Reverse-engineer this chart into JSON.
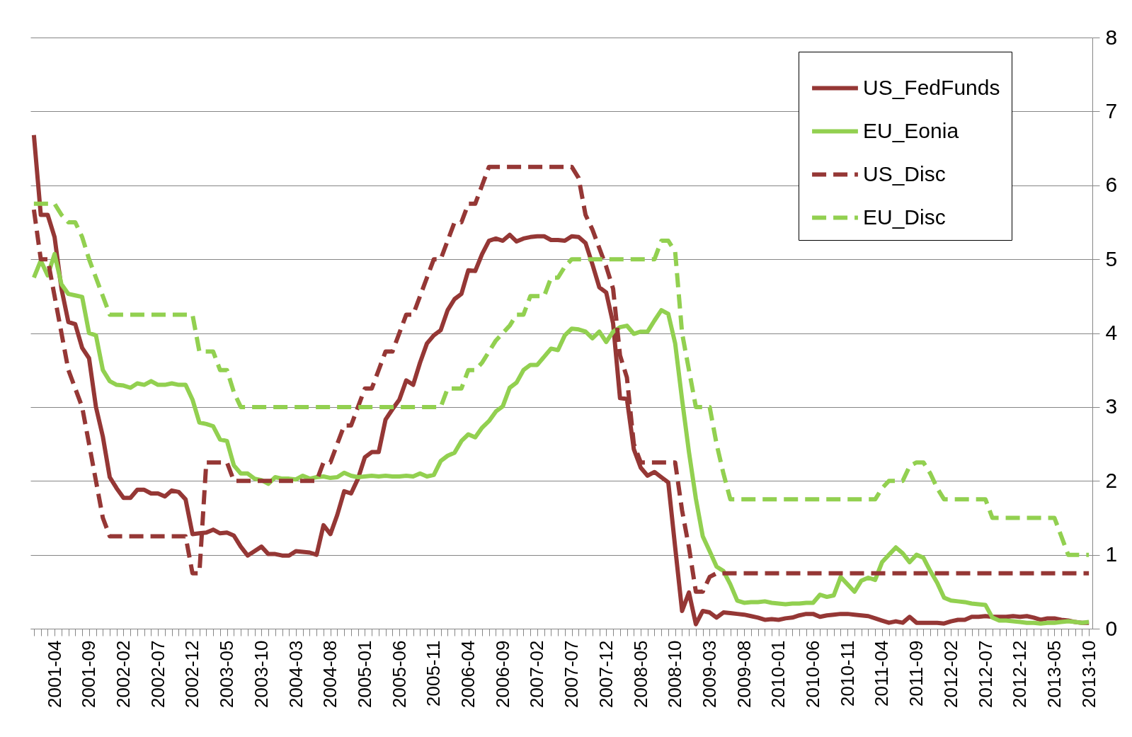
{
  "chart_data": {
    "type": "line",
    "categories": [
      null,
      null,
      null,
      "2001-04",
      null,
      null,
      null,
      null,
      "2001-09",
      null,
      null,
      null,
      null,
      "2002-02",
      null,
      null,
      null,
      null,
      "2002-07",
      null,
      null,
      null,
      null,
      "2002-12",
      null,
      null,
      null,
      null,
      "2003-05",
      null,
      null,
      null,
      null,
      "2003-10",
      null,
      null,
      null,
      null,
      "2004-03",
      null,
      null,
      null,
      null,
      "2004-08",
      null,
      null,
      null,
      null,
      "2005-01",
      null,
      null,
      null,
      null,
      "2005-06",
      null,
      null,
      null,
      null,
      "2005-11",
      null,
      null,
      null,
      null,
      "2006-04",
      null,
      null,
      null,
      null,
      "2006-09",
      null,
      null,
      null,
      null,
      "2007-02",
      null,
      null,
      null,
      null,
      "2007-07",
      null,
      null,
      null,
      null,
      "2007-12",
      null,
      null,
      null,
      null,
      "2008-05",
      null,
      null,
      null,
      null,
      "2008-10",
      null,
      null,
      null,
      null,
      "2009-03",
      null,
      null,
      null,
      null,
      "2009-08",
      null,
      null,
      null,
      null,
      "2010-01",
      null,
      null,
      null,
      null,
      "2010-06",
      null,
      null,
      null,
      null,
      "2010-11",
      null,
      null,
      null,
      null,
      "2011-04",
      null,
      null,
      null,
      null,
      "2011-09",
      null,
      null,
      null,
      null,
      "2012-02",
      null,
      null,
      null,
      null,
      "2012-07",
      null,
      null,
      null,
      null,
      "2012-12",
      null,
      null,
      null,
      null,
      "2013-05",
      null,
      null,
      null,
      null,
      "2013-10"
    ],
    "series": [
      {
        "name": "US_FedFunds",
        "color": "#953735",
        "line_style": "solid",
        "values": [
          6.68,
          5.6,
          5.6,
          5.3,
          4.6,
          4.15,
          4.12,
          3.8,
          3.66,
          3.0,
          2.6,
          2.05,
          1.9,
          1.77,
          1.77,
          1.88,
          1.88,
          1.83,
          1.83,
          1.79,
          1.87,
          1.85,
          1.75,
          1.28,
          1.29,
          1.3,
          1.34,
          1.29,
          1.3,
          1.26,
          1.11,
          0.99,
          1.05,
          1.11,
          1.01,
          1.01,
          0.99,
          0.99,
          1.05,
          1.04,
          1.03,
          1.0,
          1.4,
          1.28,
          1.54,
          1.86,
          1.83,
          2.03,
          2.32,
          2.39,
          2.39,
          2.83,
          2.97,
          3.1,
          3.36,
          3.3,
          3.6,
          3.86,
          3.97,
          4.04,
          4.31,
          4.46,
          4.53,
          4.85,
          4.84,
          5.07,
          5.25,
          5.28,
          5.25,
          5.33,
          5.24,
          5.28,
          5.3,
          5.31,
          5.31,
          5.26,
          5.26,
          5.25,
          5.31,
          5.3,
          5.22,
          4.93,
          4.62,
          4.55,
          4.13,
          3.12,
          3.11,
          2.43,
          2.18,
          2.07,
          2.12,
          2.05,
          1.98,
          1.1,
          0.24,
          0.49,
          0.06,
          0.24,
          0.22,
          0.15,
          0.22,
          0.21,
          0.2,
          0.19,
          0.17,
          0.15,
          0.12,
          0.13,
          0.12,
          0.14,
          0.15,
          0.18,
          0.2,
          0.2,
          0.16,
          0.18,
          0.19,
          0.2,
          0.2,
          0.19,
          0.18,
          0.17,
          0.14,
          0.11,
          0.08,
          0.1,
          0.08,
          0.16,
          0.08,
          0.08,
          0.08,
          0.08,
          0.07,
          0.1,
          0.12,
          0.12,
          0.16,
          0.16,
          0.17,
          0.16,
          0.16,
          0.16,
          0.17,
          0.16,
          0.17,
          0.15,
          0.12,
          0.14,
          0.14,
          0.12,
          0.11,
          0.09,
          0.08,
          0.08
        ]
      },
      {
        "name": "EU_Eonia",
        "color": "#92d050",
        "line_style": "solid",
        "values": [
          4.75,
          4.98,
          4.78,
          5.07,
          4.66,
          4.53,
          4.51,
          4.49,
          4.0,
          3.97,
          3.5,
          3.35,
          3.3,
          3.29,
          3.26,
          3.32,
          3.3,
          3.35,
          3.3,
          3.3,
          3.32,
          3.3,
          3.3,
          3.1,
          2.79,
          2.77,
          2.74,
          2.56,
          2.54,
          2.21,
          2.1,
          2.1,
          2.03,
          2.01,
          1.96,
          2.05,
          2.03,
          2.03,
          2.02,
          2.07,
          2.03,
          2.05,
          2.06,
          2.04,
          2.05,
          2.11,
          2.07,
          2.05,
          2.06,
          2.07,
          2.06,
          2.07,
          2.06,
          2.06,
          2.07,
          2.06,
          2.1,
          2.06,
          2.08,
          2.27,
          2.34,
          2.38,
          2.54,
          2.63,
          2.59,
          2.72,
          2.81,
          2.94,
          3.01,
          3.26,
          3.33,
          3.5,
          3.57,
          3.57,
          3.68,
          3.79,
          3.77,
          3.97,
          4.06,
          4.05,
          4.02,
          3.93,
          4.02,
          3.88,
          4.02,
          4.08,
          4.1,
          3.99,
          4.02,
          4.02,
          4.17,
          4.31,
          4.26,
          3.86,
          3.1,
          2.39,
          1.76,
          1.25,
          1.05,
          0.84,
          0.78,
          0.6,
          0.38,
          0.35,
          0.36,
          0.36,
          0.37,
          0.35,
          0.34,
          0.33,
          0.34,
          0.34,
          0.35,
          0.35,
          0.46,
          0.43,
          0.45,
          0.7,
          0.6,
          0.5,
          0.65,
          0.69,
          0.66,
          0.9,
          1.0,
          1.1,
          1.02,
          0.9,
          1.0,
          0.96,
          0.78,
          0.62,
          0.42,
          0.38,
          0.37,
          0.36,
          0.34,
          0.33,
          0.32,
          0.15,
          0.11,
          0.11,
          0.1,
          0.09,
          0.08,
          0.08,
          0.07,
          0.08,
          0.08,
          0.09,
          0.1,
          0.09,
          0.08,
          0.09
        ]
      },
      {
        "name": "US_Disc",
        "color": "#953735",
        "line_style": "dashed",
        "values": [
          5.67,
          5.0,
          5.0,
          4.5,
          4.0,
          3.5,
          3.25,
          3.0,
          2.5,
          2.0,
          1.5,
          1.25,
          1.25,
          1.25,
          1.25,
          1.25,
          1.25,
          1.25,
          1.25,
          1.25,
          1.25,
          1.25,
          1.25,
          0.75,
          0.75,
          2.25,
          2.25,
          2.25,
          2.25,
          2.0,
          2.0,
          2.0,
          2.0,
          2.0,
          2.0,
          2.0,
          2.0,
          2.0,
          2.0,
          2.0,
          2.0,
          2.0,
          2.25,
          2.25,
          2.5,
          2.75,
          2.75,
          3.0,
          3.25,
          3.25,
          3.5,
          3.75,
          3.75,
          4.0,
          4.25,
          4.25,
          4.5,
          4.75,
          5.0,
          5.0,
          5.25,
          5.5,
          5.5,
          5.75,
          5.75,
          6.0,
          6.25,
          6.25,
          6.25,
          6.25,
          6.25,
          6.25,
          6.25,
          6.25,
          6.25,
          6.25,
          6.25,
          6.25,
          6.25,
          6.1,
          5.6,
          5.4,
          5.15,
          4.9,
          4.6,
          3.7,
          3.4,
          2.5,
          2.25,
          2.25,
          2.25,
          2.25,
          2.25,
          2.25,
          1.6,
          1.1,
          0.5,
          0.5,
          0.7,
          0.75,
          0.75,
          0.75,
          0.75,
          0.75,
          0.75,
          0.75,
          0.75,
          0.75,
          0.75,
          0.75,
          0.75,
          0.75,
          0.75,
          0.75,
          0.75,
          0.75,
          0.75,
          0.75,
          0.75,
          0.75,
          0.75,
          0.75,
          0.75,
          0.75,
          0.75,
          0.75,
          0.75,
          0.75,
          0.75,
          0.75,
          0.75,
          0.75,
          0.75,
          0.75,
          0.75,
          0.75,
          0.75,
          0.75,
          0.75,
          0.75,
          0.75,
          0.75,
          0.75,
          0.75,
          0.75,
          0.75,
          0.75,
          0.75,
          0.75,
          0.75,
          0.75,
          0.75,
          0.75,
          0.75
        ]
      },
      {
        "name": "EU_Disc",
        "color": "#92d050",
        "line_style": "dashed",
        "values": [
          5.75,
          5.75,
          5.75,
          5.75,
          5.6,
          5.5,
          5.5,
          5.3,
          5.0,
          4.75,
          4.5,
          4.25,
          4.25,
          4.25,
          4.25,
          4.25,
          4.25,
          4.25,
          4.25,
          4.25,
          4.25,
          4.25,
          4.25,
          4.25,
          3.75,
          3.75,
          3.75,
          3.5,
          3.5,
          3.2,
          3.0,
          3.0,
          3.0,
          3.0,
          3.0,
          3.0,
          3.0,
          3.0,
          3.0,
          3.0,
          3.0,
          3.0,
          3.0,
          3.0,
          3.0,
          3.0,
          3.0,
          3.0,
          3.0,
          3.0,
          3.0,
          3.0,
          3.0,
          3.0,
          3.0,
          3.0,
          3.0,
          3.0,
          3.0,
          3.0,
          3.25,
          3.25,
          3.25,
          3.5,
          3.5,
          3.6,
          3.75,
          3.9,
          4.0,
          4.1,
          4.25,
          4.25,
          4.5,
          4.5,
          4.5,
          4.75,
          4.75,
          4.9,
          5.0,
          5.0,
          5.0,
          5.0,
          5.0,
          5.0,
          5.0,
          5.0,
          5.0,
          5.0,
          5.0,
          5.0,
          5.0,
          5.25,
          5.25,
          5.1,
          4.0,
          3.5,
          3.0,
          3.0,
          3.0,
          2.5,
          2.1,
          1.75,
          1.75,
          1.75,
          1.75,
          1.75,
          1.75,
          1.75,
          1.75,
          1.75,
          1.75,
          1.75,
          1.75,
          1.75,
          1.75,
          1.75,
          1.75,
          1.75,
          1.75,
          1.75,
          1.75,
          1.75,
          1.75,
          1.9,
          2.0,
          2.0,
          2.0,
          2.2,
          2.25,
          2.25,
          2.1,
          1.9,
          1.75,
          1.75,
          1.75,
          1.75,
          1.75,
          1.75,
          1.75,
          1.5,
          1.5,
          1.5,
          1.5,
          1.5,
          1.5,
          1.5,
          1.5,
          1.5,
          1.5,
          1.25,
          1.0,
          1.0,
          1.0,
          1.0
        ]
      }
    ],
    "ylim": [
      0,
      8
    ],
    "yticks": [
      0,
      1,
      2,
      3,
      4,
      5,
      6,
      7,
      8
    ],
    "grid": "y",
    "legend": "top right"
  }
}
